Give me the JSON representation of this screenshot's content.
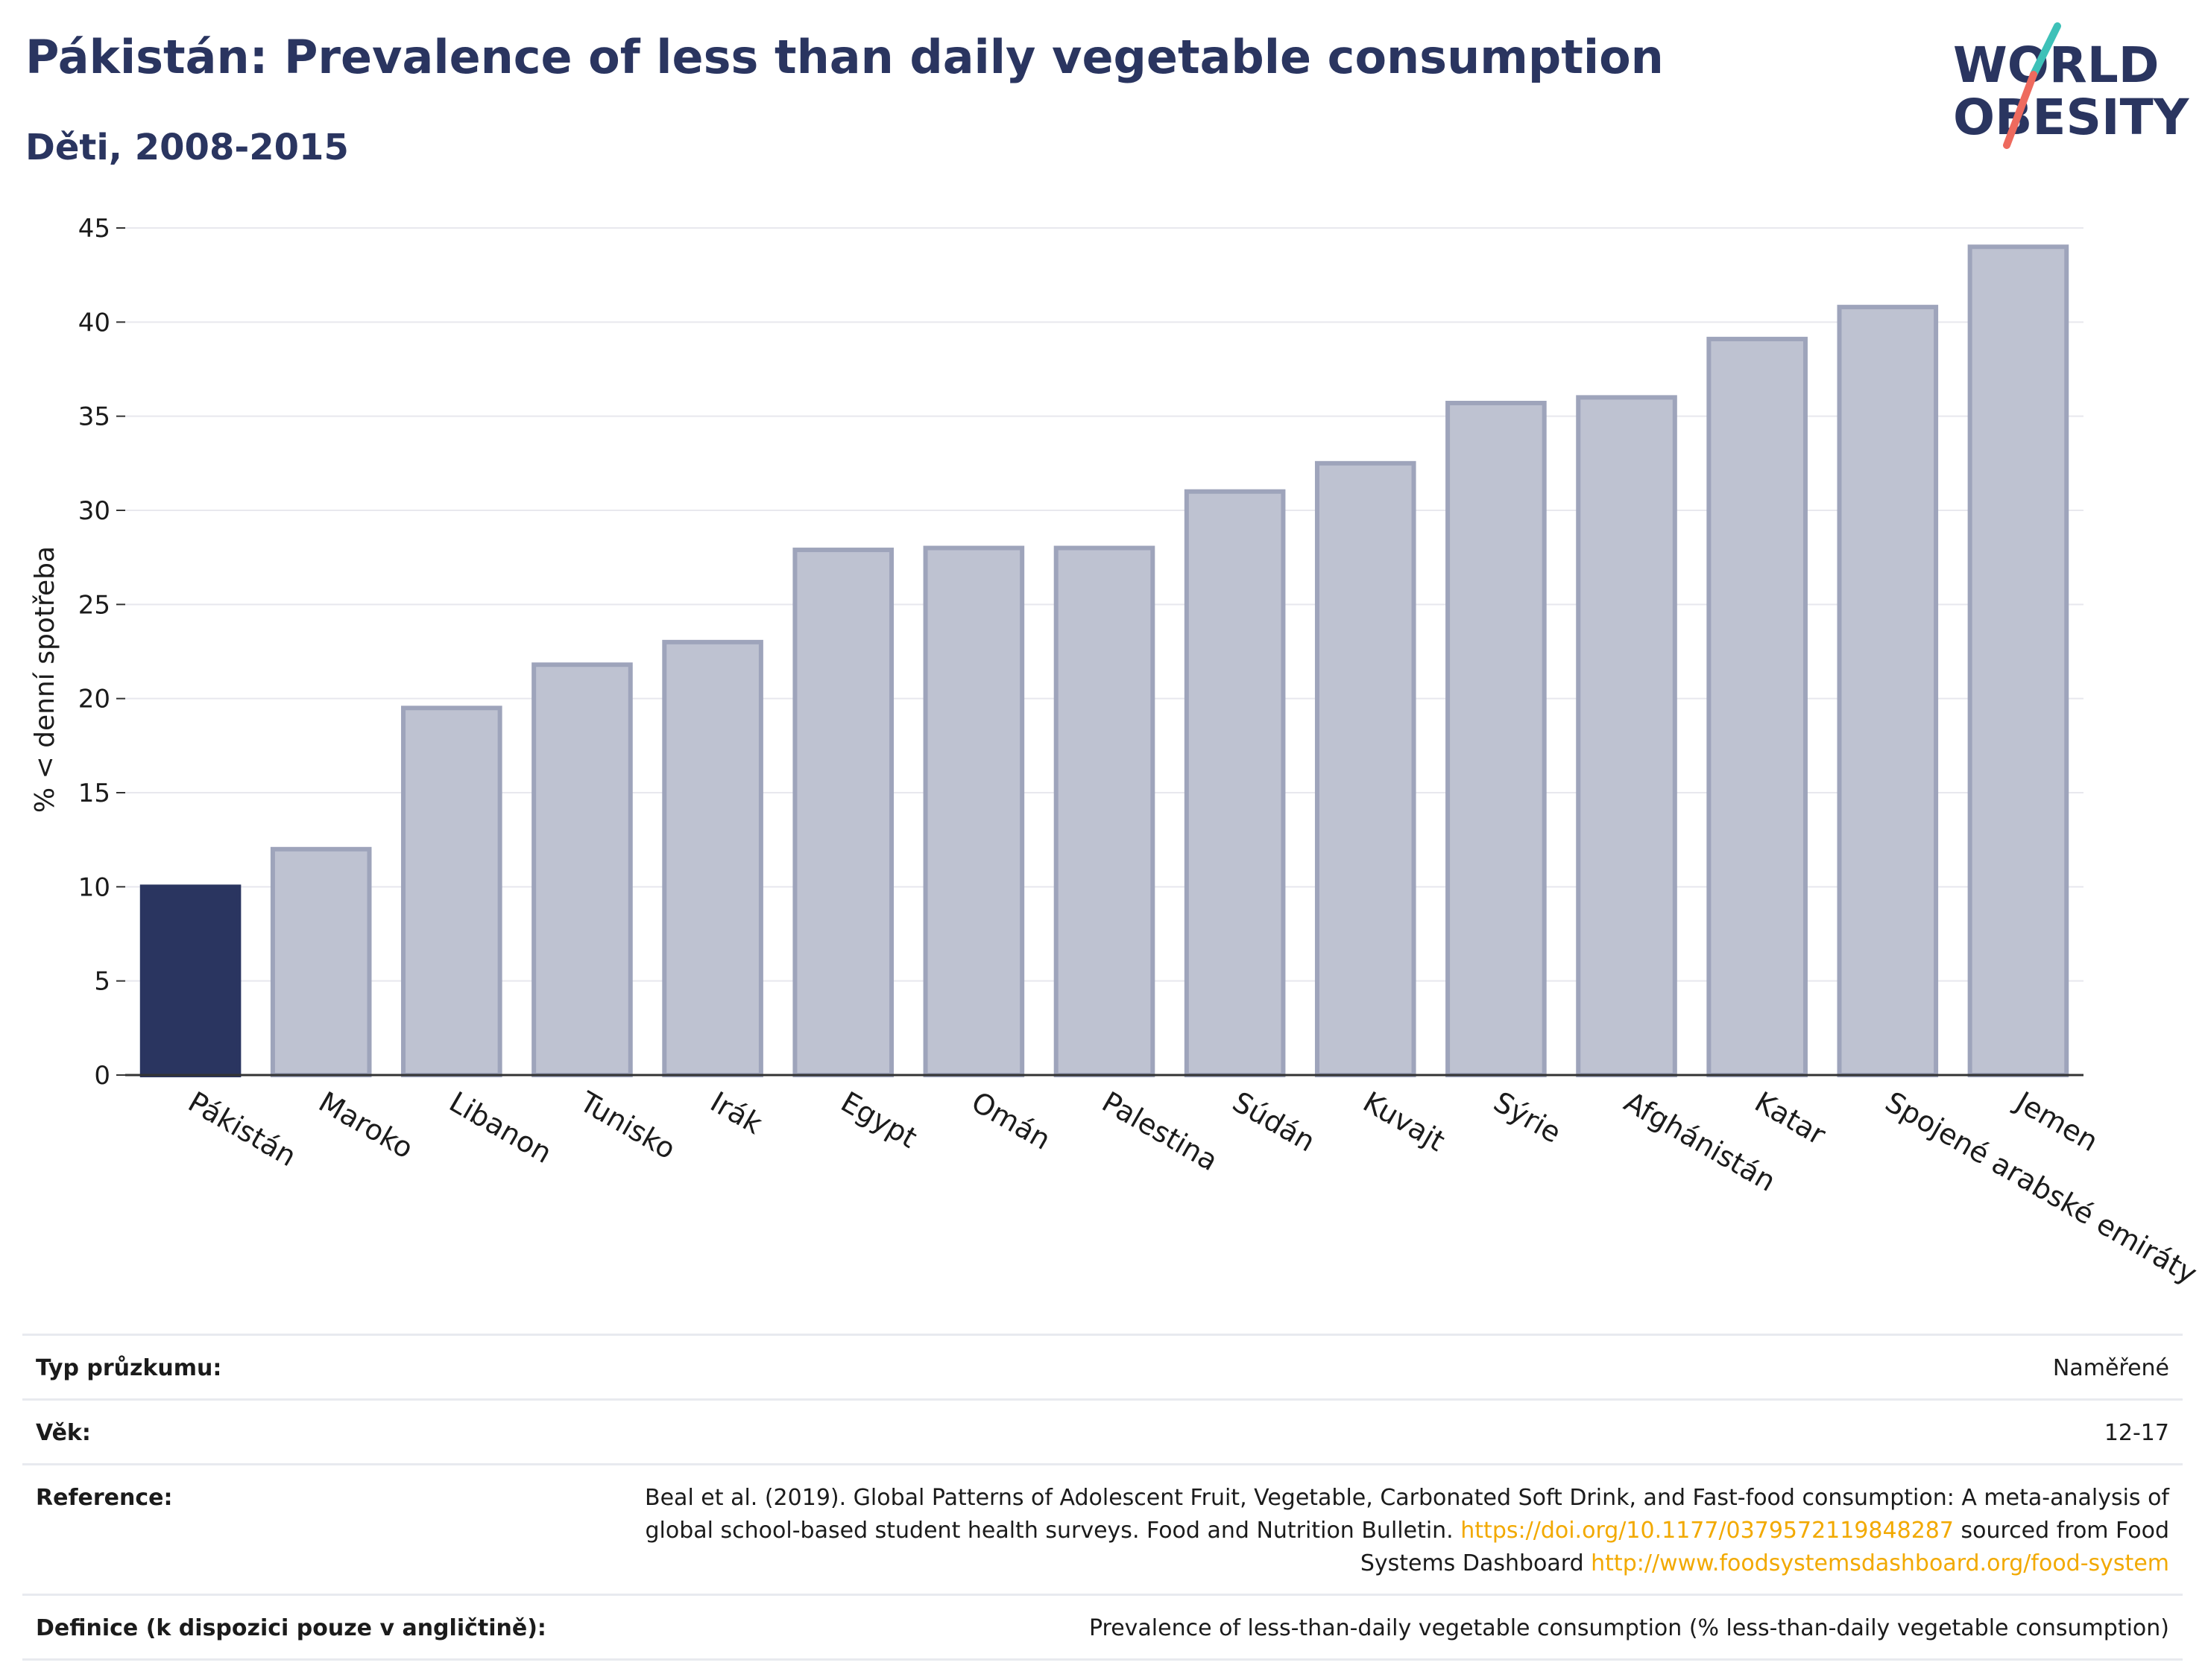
{
  "title": "Pákistán: Prevalence of less than daily vegetable consumption",
  "subtitle": "Děti, 2008-2015",
  "logo": {
    "line1": "WORLD",
    "line2": "OBESITY"
  },
  "colors": {
    "highlight": "#2a3560",
    "bar_fill": "#bec2d1",
    "bar_stroke": "#9ea4bb",
    "title": "#2a3560",
    "link": "#f2a900",
    "grid": "#e8e8ee"
  },
  "chart_data": {
    "type": "bar",
    "ylabel": "% < denní spotřeba",
    "ylim": [
      0,
      45
    ],
    "yticks": [
      0,
      5,
      10,
      15,
      20,
      25,
      30,
      35,
      40,
      45
    ],
    "grid": true,
    "highlight": "Pákistán",
    "categories": [
      "Pákistán",
      "Maroko",
      "Libanon",
      "Tunisko",
      "Irák",
      "Egypt",
      "Omán",
      "Palestina",
      "Súdán",
      "Kuvajt",
      "Sýrie",
      "Afghánistán",
      "Katar",
      "Spojené arabské emiráty",
      "Jemen"
    ],
    "values": [
      10.0,
      12.0,
      19.5,
      21.8,
      23.0,
      27.9,
      28.0,
      28.0,
      31.0,
      32.5,
      35.7,
      36.0,
      39.1,
      40.8,
      44.0
    ]
  },
  "meta": {
    "survey_type": {
      "label": "Typ průzkumu:",
      "value": "Naměřené"
    },
    "age": {
      "label": "Věk:",
      "value": "12-17"
    },
    "reference": {
      "label": "Reference:",
      "text1": "Beal et al. (2019). Global Patterns of Adolescent Fruit, Vegetable, Carbonated Soft Drink, and Fast-food consumption: A meta-analysis of global school-based student health surveys. Food and Nutrition Bulletin.",
      "link1": "https://doi.org/10.1177/0379572119848287",
      "text2": "sourced from Food Systems Dashboard",
      "link2": "http://www.foodsystemsdashboard.org/food-system"
    },
    "definition": {
      "label": "Definice (k dispozici pouze v angličtině):",
      "value": "Prevalence of less-than-daily vegetable consumption (% less-than-daily vegetable consumption)"
    }
  }
}
